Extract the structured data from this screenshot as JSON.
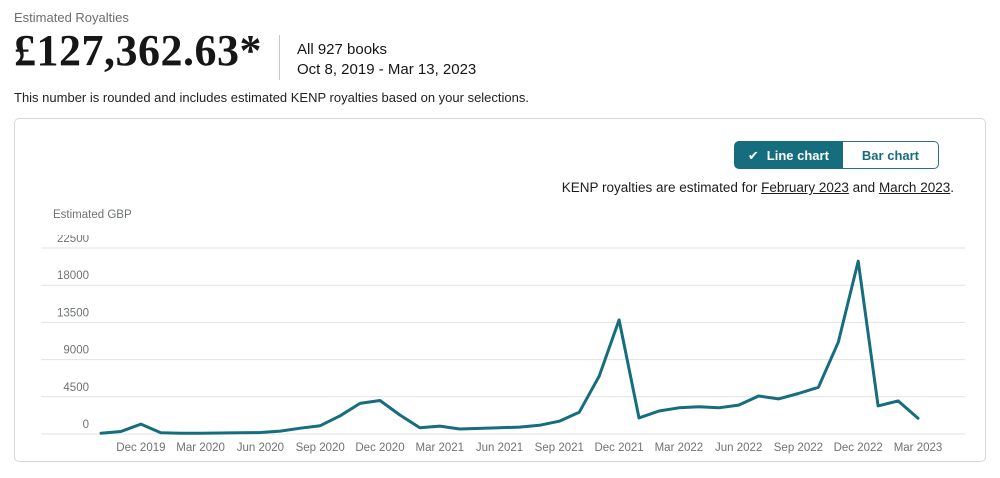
{
  "header": {
    "label": "Estimated Royalties",
    "amount": "£127,362.63*",
    "books_scope": "All 927 books",
    "date_range": "Oct 8, 2019 - Mar 13, 2023",
    "rounding_note": "This number is rounded and includes estimated KENP royalties based on your selections."
  },
  "chart_card": {
    "toggle": {
      "line_label": "Line chart",
      "bar_label": "Bar chart",
      "selected": "Line chart",
      "check_icon": "✔"
    },
    "kenp_note": {
      "prefix": "KENP royalties are estimated for ",
      "link_february": "February 2023",
      "conjunction": " and ",
      "link_march": "March 2023",
      "suffix": "."
    }
  },
  "chart_data": {
    "type": "line",
    "title": "",
    "xlabel": "",
    "ylabel": "Estimated GBP",
    "ylim": [
      0,
      22500
    ],
    "y_ticks": [
      0,
      4500,
      9000,
      13500,
      18000,
      22500
    ],
    "grid": true,
    "legend_position": "none",
    "x": [
      "Oct 2019",
      "Nov 2019",
      "Dec 2019",
      "Jan 2020",
      "Feb 2020",
      "Mar 2020",
      "Apr 2020",
      "May 2020",
      "Jun 2020",
      "Jul 2020",
      "Aug 2020",
      "Sep 2020",
      "Oct 2020",
      "Nov 2020",
      "Dec 2020",
      "Jan 2021",
      "Feb 2021",
      "Mar 2021",
      "Apr 2021",
      "May 2021",
      "Jun 2021",
      "Jul 2021",
      "Aug 2021",
      "Sep 2021",
      "Oct 2021",
      "Nov 2021",
      "Dec 2021",
      "Jan 2022",
      "Feb 2022",
      "Mar 2022",
      "Apr 2022",
      "May 2022",
      "Jun 2022",
      "Jul 2022",
      "Aug 2022",
      "Sep 2022",
      "Oct 2022",
      "Nov 2022",
      "Dec 2022",
      "Jan 2023",
      "Feb 2023",
      "Mar 2023"
    ],
    "values": [
      100,
      300,
      1200,
      150,
      80,
      80,
      120,
      150,
      180,
      350,
      700,
      1000,
      2200,
      3700,
      4050,
      2300,
      750,
      950,
      600,
      680,
      760,
      840,
      1050,
      1550,
      2620,
      7000,
      13800,
      1950,
      2780,
      3170,
      3290,
      3170,
      3500,
      4600,
      4250,
      4900,
      5650,
      11100,
      20900,
      3400,
      4000,
      1900
    ],
    "x_tick_labels": [
      "Dec 2019",
      "Mar 2020",
      "Jun 2020",
      "Sep 2020",
      "Dec 2020",
      "Mar 2021",
      "Jun 2021",
      "Sep 2021",
      "Dec 2021",
      "Mar 2022",
      "Jun 2022",
      "Sep 2022",
      "Dec 2022",
      "Mar 2023"
    ],
    "line_color": "#156d7e"
  },
  "colors": {
    "accent_teal": "#156d7e",
    "gridline": "#e2e2e2",
    "axis_text": "#6f7373",
    "card_border": "#d7d7d7"
  }
}
